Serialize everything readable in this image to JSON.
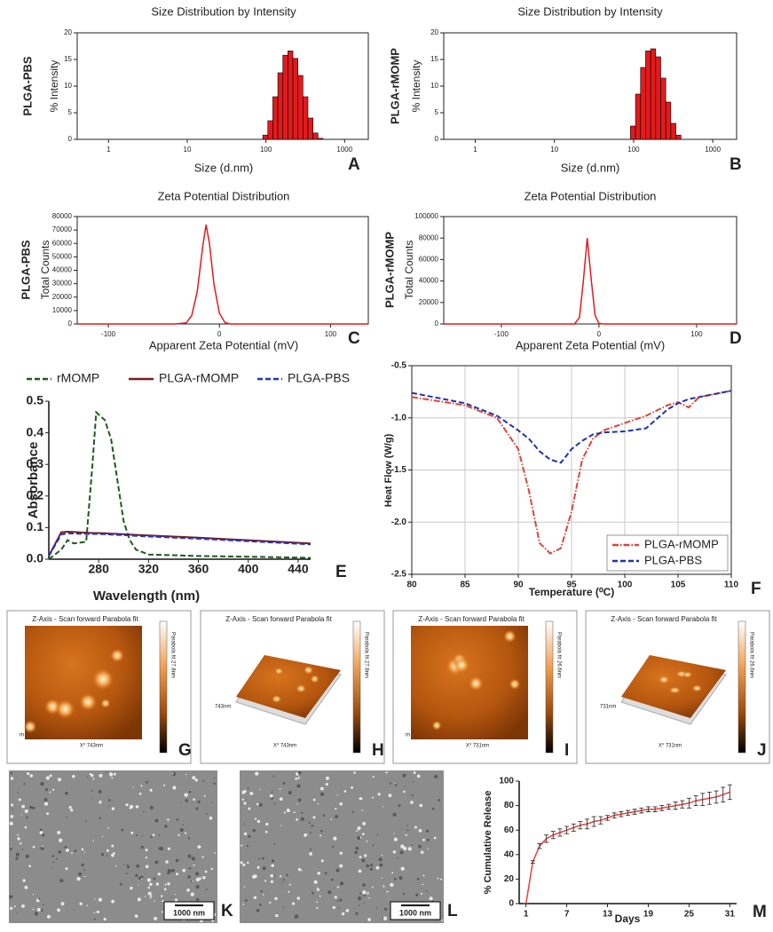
{
  "chart_data": [
    {
      "type": "histogram",
      "title": "Size Distribution by Intensity",
      "side_label": "PLGA-PBS",
      "ylabel": "% Intensity",
      "xlabel": "Size (d.nm)",
      "panel": "A",
      "xscale": "log",
      "color": "#e31a1c",
      "bins": [
        91.3,
        105.7,
        122.4,
        141.8,
        164.2,
        190.1,
        220.2,
        255.0,
        295.3,
        342.0,
        396.1,
        458.7,
        531.2
      ],
      "values": [
        0.8,
        3.5,
        8.0,
        12.5,
        15.8,
        16.6,
        15.2,
        12.0,
        8.0,
        4.0,
        1.2,
        0.2
      ],
      "xlim": [
        0.4,
        2000
      ],
      "xticks": [
        1,
        10,
        100,
        1000
      ],
      "ylim": [
        0,
        20
      ],
      "yticks": [
        0,
        5,
        10,
        15,
        20
      ]
    },
    {
      "type": "histogram",
      "title": "Size Distribution by Intensity",
      "side_label": "PLGA-rMOMP",
      "ylabel": "% Intensity",
      "xlabel": "Size (d.nm)",
      "panel": "B",
      "xscale": "log",
      "color": "#e31a1c",
      "bins": [
        91.3,
        105.7,
        122.4,
        141.8,
        164.2,
        190.1,
        220.2,
        255.0,
        295.3,
        342.0,
        396.1
      ],
      "values": [
        2.5,
        8.5,
        13.5,
        16.6,
        17.0,
        15.5,
        11.5,
        7.0,
        3.0,
        0.8
      ],
      "xlim": [
        0.4,
        2000
      ],
      "xticks": [
        1,
        10,
        100,
        1000
      ],
      "ylim": [
        0,
        20
      ],
      "yticks": [
        0,
        5,
        10,
        15,
        20
      ]
    },
    {
      "type": "line",
      "title": "Zeta Potential Distribution",
      "side_label": "PLGA-PBS",
      "ylabel": "Total Counts",
      "xlabel": "Apparent Zeta Potential (mV)",
      "panel": "C",
      "color": "#e31a1c",
      "x": [
        -128,
        -60,
        -40,
        -30,
        -25,
        -20,
        -15,
        -12,
        -9,
        -5,
        0,
        5,
        10,
        20,
        134
      ],
      "values": [
        0,
        0,
        0,
        800,
        6000,
        24000,
        58000,
        74000,
        60000,
        30000,
        8000,
        1000,
        0,
        0,
        0
      ],
      "xlim": [
        -128,
        134
      ],
      "xticks": [
        -100,
        0,
        100
      ],
      "ylim": [
        0,
        80000
      ],
      "yticks": [
        0,
        10000,
        20000,
        30000,
        40000,
        50000,
        60000,
        70000,
        80000
      ]
    },
    {
      "type": "line",
      "title": "Zeta Potential Distribution",
      "side_label": "PLGA-rMOMP",
      "ylabel": "Total Counts",
      "xlabel": "Apparent Zeta Potential (mV)",
      "panel": "D",
      "color": "#e31a1c",
      "x": [
        -159,
        -40,
        -25,
        -20,
        -16,
        -12,
        -8,
        -4,
        0,
        5,
        141
      ],
      "values": [
        0,
        0,
        0,
        6000,
        40000,
        80000,
        42000,
        8000,
        500,
        0,
        0
      ],
      "xlim": [
        -159,
        141
      ],
      "xticks": [
        -100,
        0,
        100
      ],
      "ylim": [
        0,
        100000
      ],
      "yticks": [
        0,
        20000,
        40000,
        60000,
        80000,
        100000
      ]
    },
    {
      "type": "line",
      "ylabel": "Absorbance",
      "xlabel": "Wavelength (nm)",
      "panel": "E",
      "legend": "top",
      "x": [
        240,
        250,
        255,
        260,
        270,
        275,
        278,
        285,
        290,
        295,
        300,
        305,
        310,
        320,
        360,
        400,
        440,
        450
      ],
      "series": [
        {
          "name": "rMOMP",
          "color": "#1f5a1f",
          "linestyle": "dashed",
          "values": [
            0,
            0.03,
            0.06,
            0.05,
            0.055,
            0.3,
            0.465,
            0.44,
            0.38,
            0.25,
            0.12,
            0.06,
            0.03,
            0.015,
            0.01,
            0.008,
            0.005,
            0.004
          ]
        },
        {
          "name": "PLGA-rMOMP",
          "color": "#7a1c1c",
          "linestyle": "solid",
          "values": [
            0.01,
            0.085,
            0.087,
            0.086,
            0.084,
            0.083,
            0.083,
            0.082,
            0.081,
            0.08,
            0.079,
            0.078,
            0.077,
            0.075,
            0.068,
            0.06,
            0.052,
            0.05
          ]
        },
        {
          "name": "PLGA-PBS",
          "color": "#2233cc",
          "linestyle": "dashed",
          "values": [
            0.01,
            0.078,
            0.082,
            0.081,
            0.08,
            0.08,
            0.08,
            0.079,
            0.078,
            0.077,
            0.076,
            0.075,
            0.074,
            0.072,
            0.065,
            0.057,
            0.049,
            0.047
          ]
        }
      ],
      "xlim": [
        240,
        450
      ],
      "xticks": [
        280,
        320,
        360,
        400,
        440
      ],
      "ylim": [
        0,
        0.5
      ],
      "yticks": [
        {
          "value": 0,
          "label": "0.0"
        },
        0.1,
        0.2,
        0.3,
        0.4,
        0.5
      ]
    },
    {
      "type": "line",
      "ylabel": "Heat Flow (W/g)",
      "xlabel": "Temperature (⁰C)",
      "panel": "F",
      "legend": "lower right",
      "grid": true,
      "x": [
        80,
        85,
        88,
        90,
        91,
        92,
        93,
        94,
        95,
        96,
        97,
        98,
        100,
        102,
        104,
        105,
        106,
        107,
        110
      ],
      "series": [
        {
          "name": "PLGA-rMOMP",
          "color": "#d9463b",
          "linestyle": "dashdot",
          "values": [
            -0.8,
            -0.88,
            -1.0,
            -1.3,
            -1.7,
            -2.2,
            -2.3,
            -2.25,
            -1.9,
            -1.4,
            -1.2,
            -1.12,
            -1.05,
            -0.98,
            -0.88,
            -0.85,
            -0.9,
            -0.8,
            -0.74
          ]
        },
        {
          "name": "PLGA-PBS",
          "color": "#2233aa",
          "linestyle": "dashed",
          "values": [
            -0.76,
            -0.86,
            -0.98,
            -1.12,
            -1.2,
            -1.32,
            -1.4,
            -1.43,
            -1.3,
            -1.22,
            -1.16,
            -1.14,
            -1.13,
            -1.1,
            -0.92,
            -0.86,
            -0.82,
            -0.8,
            -0.74
          ]
        }
      ],
      "xlim": [
        80,
        110
      ],
      "xticks": [
        80,
        85,
        90,
        95,
        100,
        105,
        110
      ],
      "ylim": [
        -2.5,
        -0.5
      ],
      "yticks": [
        -2.5,
        {
          "value": -2,
          "label": "-2.0"
        },
        -1.5,
        {
          "value": -1,
          "label": "-1.0"
        },
        -0.5
      ]
    },
    {
      "type": "errorbar",
      "ylabel": "% Cumulative Release",
      "xlabel": "Days",
      "panel": "M",
      "color": "#e8413c",
      "x": [
        1,
        2,
        3,
        4,
        5,
        6,
        7,
        8,
        9,
        10,
        11,
        12,
        13,
        14,
        15,
        16,
        17,
        18,
        19,
        20,
        21,
        22,
        23,
        24,
        25,
        26,
        27,
        28,
        29,
        30,
        31
      ],
      "values": [
        0,
        34,
        47,
        53,
        56,
        58,
        60,
        62,
        64,
        65,
        67,
        68,
        70,
        72,
        73,
        74,
        75,
        76,
        77,
        77,
        78,
        79,
        80,
        81,
        82,
        84,
        85,
        86,
        87,
        89,
        91
      ],
      "errors": [
        0,
        1,
        2,
        3,
        3,
        3,
        3,
        3,
        3,
        4,
        4,
        3,
        2,
        2,
        2,
        2,
        2,
        2,
        2,
        2,
        2,
        2,
        3,
        3,
        4,
        4,
        5,
        5,
        5,
        6,
        6
      ],
      "xlim": [
        0,
        32
      ],
      "xticks": [
        1,
        7,
        13,
        19,
        25,
        31
      ],
      "ylim": [
        0,
        100
      ],
      "yticks": [
        0,
        20,
        40,
        60,
        80,
        100
      ]
    }
  ],
  "images": [
    {
      "type": "afm",
      "view": "flat",
      "header": "Z-Axis - Scan forward   Parabola fit",
      "x_label": "X* 743nm",
      "y_label": "m",
      "colorbar_label": "Parabola fit 27.8nm",
      "letter": "G"
    },
    {
      "type": "afm",
      "view": "3d",
      "header": "Z-Axis - Scan forward   Parabola fit",
      "x_label": "X* 743nm",
      "y_label": "743nm",
      "colorbar_label": "Parabola fit 27.8nm",
      "letter": "H"
    },
    {
      "type": "afm",
      "view": "flat",
      "header": "Z-Axis - Scan forward   Parabola fit",
      "x_label": "X* 731nm",
      "y_label": "m",
      "colorbar_label": "Parabola fit 26.6nm",
      "letter": "I"
    },
    {
      "type": "afm",
      "view": "3d",
      "header": "Z-Axis - Scan forward   Parabola fit",
      "x_label": "X* 731nm",
      "y_label": "731nm",
      "colorbar_label": "Parabola fit 26.6nm",
      "letter": "J"
    },
    {
      "type": "sem",
      "scale_label": "1000 nm",
      "letter": "K"
    },
    {
      "type": "sem",
      "scale_label": "1000 nm",
      "letter": "L"
    }
  ]
}
